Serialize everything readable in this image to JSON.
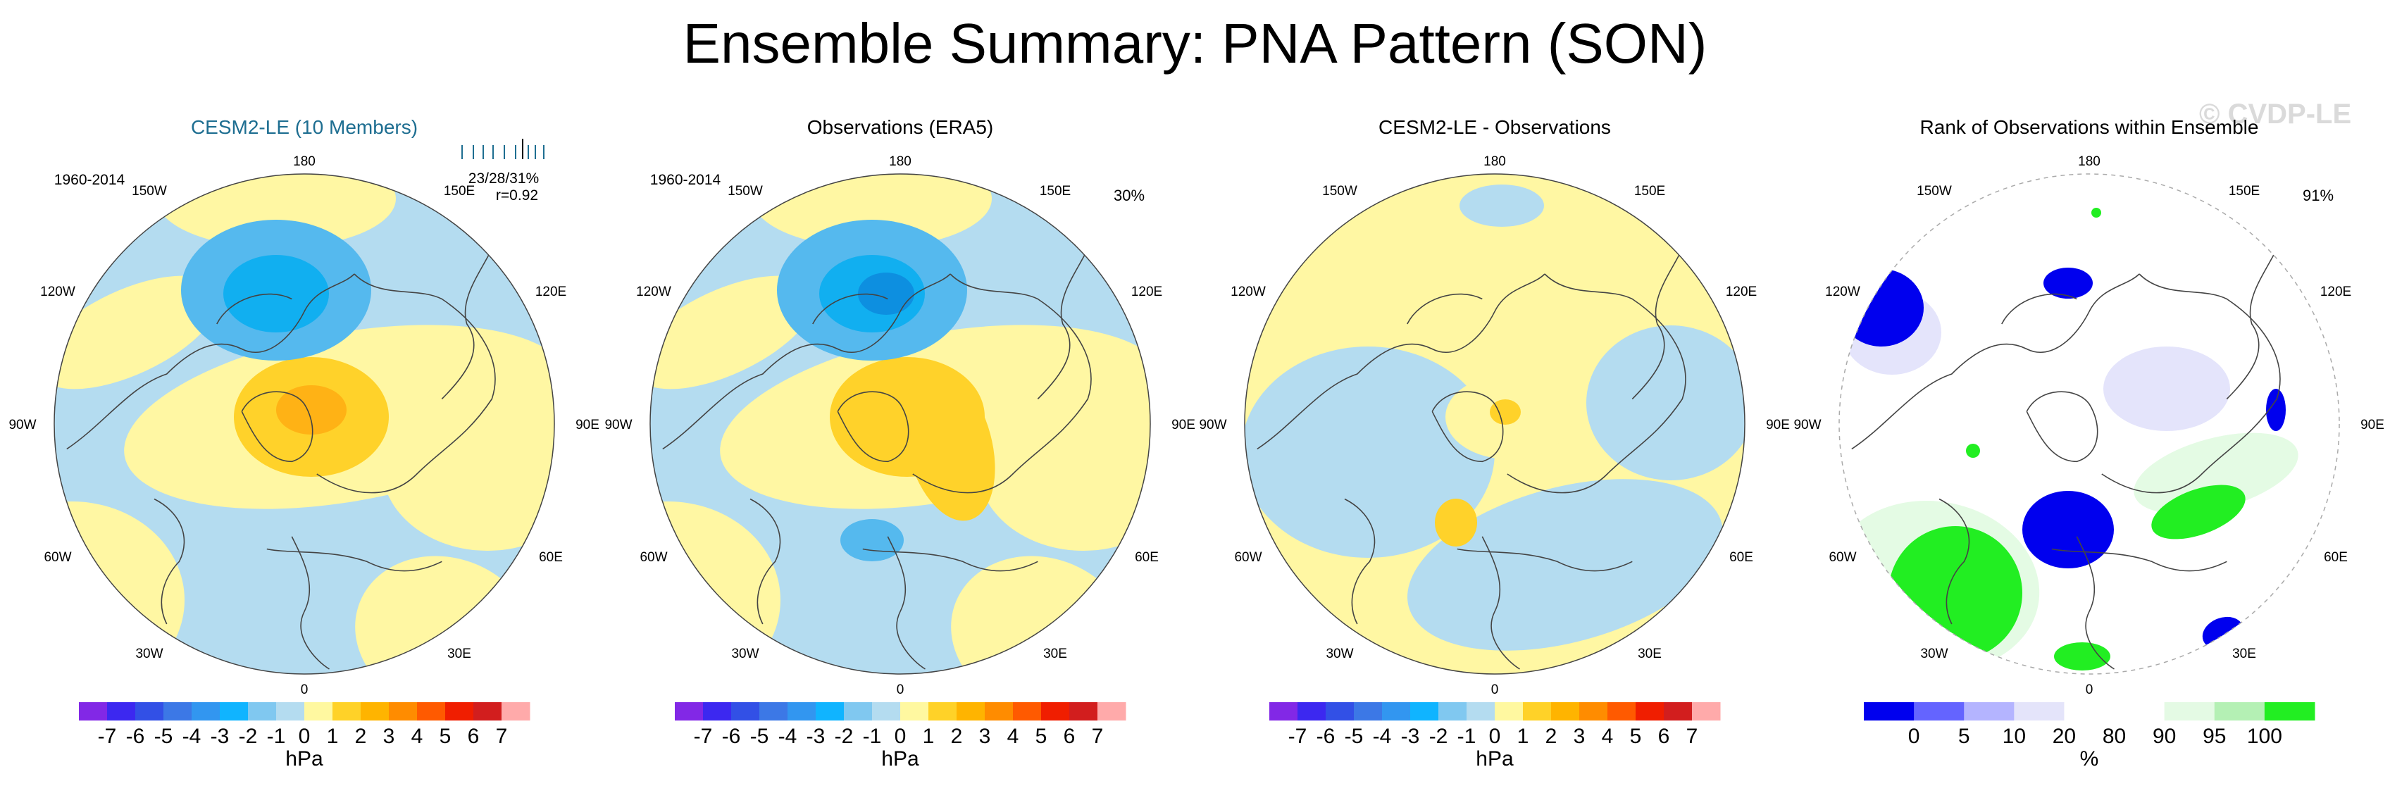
{
  "title": "Ensemble Summary: PNA Pattern (SON)",
  "watermark": "© CVDP-LE",
  "colors": {
    "ocean_neg_light": "#b4dcf0",
    "neg_mid": "#55b9ee",
    "neg_strong": "#11aff0",
    "neg_core": "#0d8fe0",
    "pos_light": "#fff7a3",
    "pos_mid": "#ffd22a",
    "pos_strong": "#ffb215",
    "pos_core": "#ff9911",
    "rank_low": "#0000ee",
    "rank_lowmid": "#b9b9ff",
    "rank_lowlight": "#e4e4fb",
    "rank_highlight": "#e4fbe4",
    "rank_high": "#22ee22"
  },
  "panels": [
    {
      "title": "CESM2-LE (10 Members)",
      "title_color": "#1e6e91",
      "period": "1960-2014",
      "stats_line1": "23/28/31%",
      "stats_line2": "r=0.92",
      "percent": "",
      "lon_labels": {
        "top": "180",
        "tl": "150W",
        "tr": "150E",
        "ul": "120W",
        "ur": "120E",
        "ml": "90W",
        "mr": "90E",
        "ll": "60W",
        "lr": "60E",
        "bl": "30W",
        "br": "30E",
        "bottom": "0"
      },
      "colorbar_units": "hPa"
    },
    {
      "title": "Observations (ERA5)",
      "title_color": "#000000",
      "period": "1960-2014",
      "stats_line1": "",
      "stats_line2": "",
      "percent": "30%",
      "lon_labels": {
        "top": "180",
        "tl": "150W",
        "tr": "150E",
        "ul": "120W",
        "ur": "120E",
        "ml": "90W",
        "mr": "90E",
        "ll": "60W",
        "lr": "60E",
        "bl": "30W",
        "br": "30E",
        "bottom": "0"
      },
      "colorbar_units": "hPa"
    },
    {
      "title": "CESM2-LE - Observations",
      "title_color": "#000000",
      "period": "",
      "stats_line1": "",
      "stats_line2": "",
      "percent": "",
      "lon_labels": {
        "top": "180",
        "tl": "150W",
        "tr": "150E",
        "ul": "120W",
        "ur": "120E",
        "ml": "90W",
        "mr": "90E",
        "ll": "60W",
        "lr": "60E",
        "bl": "30W",
        "br": "30E",
        "bottom": "0"
      },
      "colorbar_units": "hPa"
    },
    {
      "title": "Rank of Observations within Ensemble",
      "title_color": "#000000",
      "period": "",
      "stats_line1": "",
      "stats_line2": "",
      "percent": "91%",
      "lon_labels": {
        "top": "180",
        "tl": "150W",
        "tr": "150E",
        "ul": "120W",
        "ur": "120E",
        "ml": "90W",
        "mr": "90E",
        "ll": "60W",
        "lr": "60E",
        "bl": "30W",
        "br": "30E",
        "bottom": "0"
      },
      "colorbar_units": "%"
    }
  ],
  "hpa_colorbar": {
    "colors": [
      "#8228e6",
      "#3c28f0",
      "#3250e6",
      "#3c78e6",
      "#3296f0",
      "#10b4ff",
      "#80c8f0",
      "#b4dcf0",
      "#fff8a0",
      "#ffd228",
      "#ffb400",
      "#ff8c00",
      "#ff5a00",
      "#f01e00",
      "#d21e1e",
      "#ffaaaa"
    ],
    "labels": [
      "-7",
      "-6",
      "-5",
      "-4",
      "-3",
      "-2",
      "-1",
      "0",
      "1",
      "2",
      "3",
      "4",
      "5",
      "6",
      "7"
    ]
  },
  "rank_colorbar": {
    "colors": [
      "#0000ee",
      "#6464ff",
      "#b4b4ff",
      "#e4e4fa",
      "#ffffff",
      "#ffffff",
      "#e4fae4",
      "#b4f0b4",
      "#22ee22"
    ],
    "labels": [
      "0",
      "5",
      "10",
      "20",
      "80",
      "90",
      "95",
      "100"
    ]
  }
}
